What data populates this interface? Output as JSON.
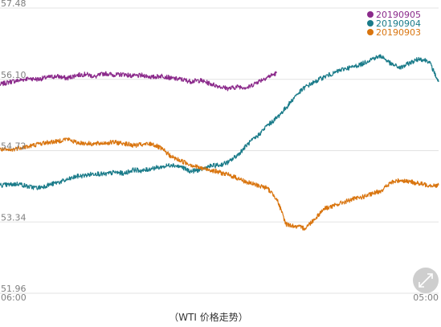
{
  "chart_data": {
    "type": "line",
    "title": "",
    "xlabel": "",
    "ylabel": "",
    "x_ticks": [
      "06:00",
      "05:00"
    ],
    "y_ticks": [
      57.48,
      56.1,
      54.72,
      53.34,
      51.96
    ],
    "y_tick_labels": [
      "57.48",
      "56.10",
      "54.72",
      "53.34",
      "51.96"
    ],
    "ylim": [
      51.96,
      57.48
    ],
    "x_domain_hours": [
      0,
      23
    ],
    "grid": "horizontal",
    "legend_position": "top-right",
    "series": [
      {
        "name": "20190905",
        "color": "#8b2a8b",
        "x": [
          0,
          0.5,
          1,
          1.5,
          2,
          2.5,
          3,
          3.5,
          4,
          4.5,
          5,
          5.5,
          6,
          6.5,
          7,
          7.5,
          8,
          8.5,
          9,
          9.5,
          10,
          10.5,
          11,
          11.5,
          12,
          12.5,
          13,
          13.5,
          14,
          14.5
        ],
        "y": [
          56.0,
          56.05,
          56.08,
          56.12,
          56.1,
          56.14,
          56.16,
          56.12,
          56.18,
          56.2,
          56.15,
          56.22,
          56.18,
          56.2,
          56.16,
          56.18,
          56.14,
          56.17,
          56.12,
          56.1,
          56.06,
          56.08,
          56.02,
          55.96,
          55.92,
          55.96,
          55.94,
          56.05,
          56.14,
          56.22
        ]
      },
      {
        "name": "20190904",
        "color": "#1a7b89",
        "x": [
          0,
          1,
          2,
          3,
          4,
          5,
          6,
          7,
          8,
          9,
          10,
          11,
          12,
          13,
          14,
          15,
          16,
          17,
          18,
          19,
          20,
          21,
          22,
          23
        ],
        "y": [
          54.05,
          54.08,
          54.0,
          54.1,
          54.22,
          54.28,
          54.3,
          54.35,
          54.38,
          54.45,
          54.32,
          54.42,
          54.5,
          54.85,
          55.2,
          55.55,
          55.95,
          56.15,
          56.3,
          56.4,
          56.55,
          56.32,
          56.5,
          56.05
        ],
        "points": [
          [
            0.0,
            54.05
          ],
          [
            0.5,
            54.06
          ],
          [
            1.0,
            54.08
          ],
          [
            1.5,
            54.02
          ],
          [
            2.0,
            54.0
          ],
          [
            2.5,
            54.05
          ],
          [
            3.0,
            54.1
          ],
          [
            3.5,
            54.15
          ],
          [
            4.0,
            54.22
          ],
          [
            4.5,
            54.24
          ],
          [
            5.0,
            54.28
          ],
          [
            5.5,
            54.26
          ],
          [
            6.0,
            54.3
          ],
          [
            6.5,
            54.28
          ],
          [
            7.0,
            54.35
          ],
          [
            7.5,
            54.33
          ],
          [
            8.0,
            54.38
          ],
          [
            8.5,
            54.4
          ],
          [
            9.0,
            54.45
          ],
          [
            9.5,
            54.4
          ],
          [
            10.0,
            54.32
          ],
          [
            10.5,
            54.35
          ],
          [
            11.0,
            54.42
          ],
          [
            11.5,
            54.44
          ],
          [
            12.0,
            54.5
          ],
          [
            12.5,
            54.65
          ],
          [
            13.0,
            54.85
          ],
          [
            13.5,
            55.0
          ],
          [
            14.0,
            55.2
          ],
          [
            14.5,
            55.35
          ],
          [
            15.0,
            55.55
          ],
          [
            15.5,
            55.78
          ],
          [
            16.0,
            55.95
          ],
          [
            16.5,
            56.05
          ],
          [
            17.0,
            56.15
          ],
          [
            17.5,
            56.22
          ],
          [
            18.0,
            56.3
          ],
          [
            18.5,
            56.34
          ],
          [
            19.0,
            56.4
          ],
          [
            19.5,
            56.5
          ],
          [
            20.0,
            56.55
          ],
          [
            20.5,
            56.4
          ],
          [
            21.0,
            56.32
          ],
          [
            21.5,
            56.42
          ],
          [
            22.0,
            56.5
          ],
          [
            22.5,
            56.45
          ],
          [
            23.0,
            56.05
          ]
        ]
      },
      {
        "name": "20190903",
        "color": "#d9750f",
        "x": [
          0,
          1,
          2,
          3,
          4,
          5,
          6,
          7,
          8,
          9,
          10,
          11,
          12,
          13,
          14,
          15,
          16,
          17,
          18,
          19,
          20,
          21,
          22,
          23
        ],
        "y": [
          54.75,
          54.78,
          54.85,
          54.9,
          54.88,
          54.85,
          54.88,
          54.82,
          54.85,
          54.6,
          54.45,
          54.35,
          54.25,
          54.1,
          54.0,
          53.3,
          53.22,
          53.6,
          53.72,
          53.82,
          53.95,
          54.15,
          54.08,
          54.05
        ],
        "points": [
          [
            0.0,
            54.75
          ],
          [
            0.5,
            54.72
          ],
          [
            1.0,
            54.78
          ],
          [
            1.5,
            54.8
          ],
          [
            2.0,
            54.85
          ],
          [
            2.5,
            54.88
          ],
          [
            3.0,
            54.9
          ],
          [
            3.5,
            54.95
          ],
          [
            4.0,
            54.88
          ],
          [
            4.5,
            54.86
          ],
          [
            5.0,
            54.85
          ],
          [
            5.5,
            54.87
          ],
          [
            6.0,
            54.88
          ],
          [
            6.5,
            54.86
          ],
          [
            7.0,
            54.82
          ],
          [
            7.5,
            54.84
          ],
          [
            8.0,
            54.85
          ],
          [
            8.5,
            54.75
          ],
          [
            9.0,
            54.6
          ],
          [
            9.5,
            54.52
          ],
          [
            10.0,
            54.45
          ],
          [
            10.5,
            54.38
          ],
          [
            11.0,
            54.35
          ],
          [
            11.5,
            54.3
          ],
          [
            12.0,
            54.25
          ],
          [
            12.5,
            54.18
          ],
          [
            13.0,
            54.1
          ],
          [
            13.5,
            54.05
          ],
          [
            14.0,
            54.0
          ],
          [
            14.5,
            53.8
          ],
          [
            15.0,
            53.3
          ],
          [
            15.5,
            53.25
          ],
          [
            16.0,
            53.22
          ],
          [
            16.5,
            53.4
          ],
          [
            17.0,
            53.6
          ],
          [
            17.5,
            53.65
          ],
          [
            18.0,
            53.72
          ],
          [
            18.5,
            53.78
          ],
          [
            19.0,
            53.82
          ],
          [
            19.5,
            53.88
          ],
          [
            20.0,
            53.95
          ],
          [
            20.5,
            54.1
          ],
          [
            21.0,
            54.15
          ],
          [
            21.5,
            54.12
          ],
          [
            22.0,
            54.08
          ],
          [
            22.5,
            54.05
          ],
          [
            23.0,
            54.05
          ]
        ]
      }
    ]
  },
  "caption": "（WTI 价格走势）",
  "colors": {
    "grid": "#e3e3e3",
    "tick_text": "#7f7f7f",
    "zoom_button": "#c9c9c9"
  },
  "icons": {
    "zoom": "expand-arrows-icon"
  }
}
